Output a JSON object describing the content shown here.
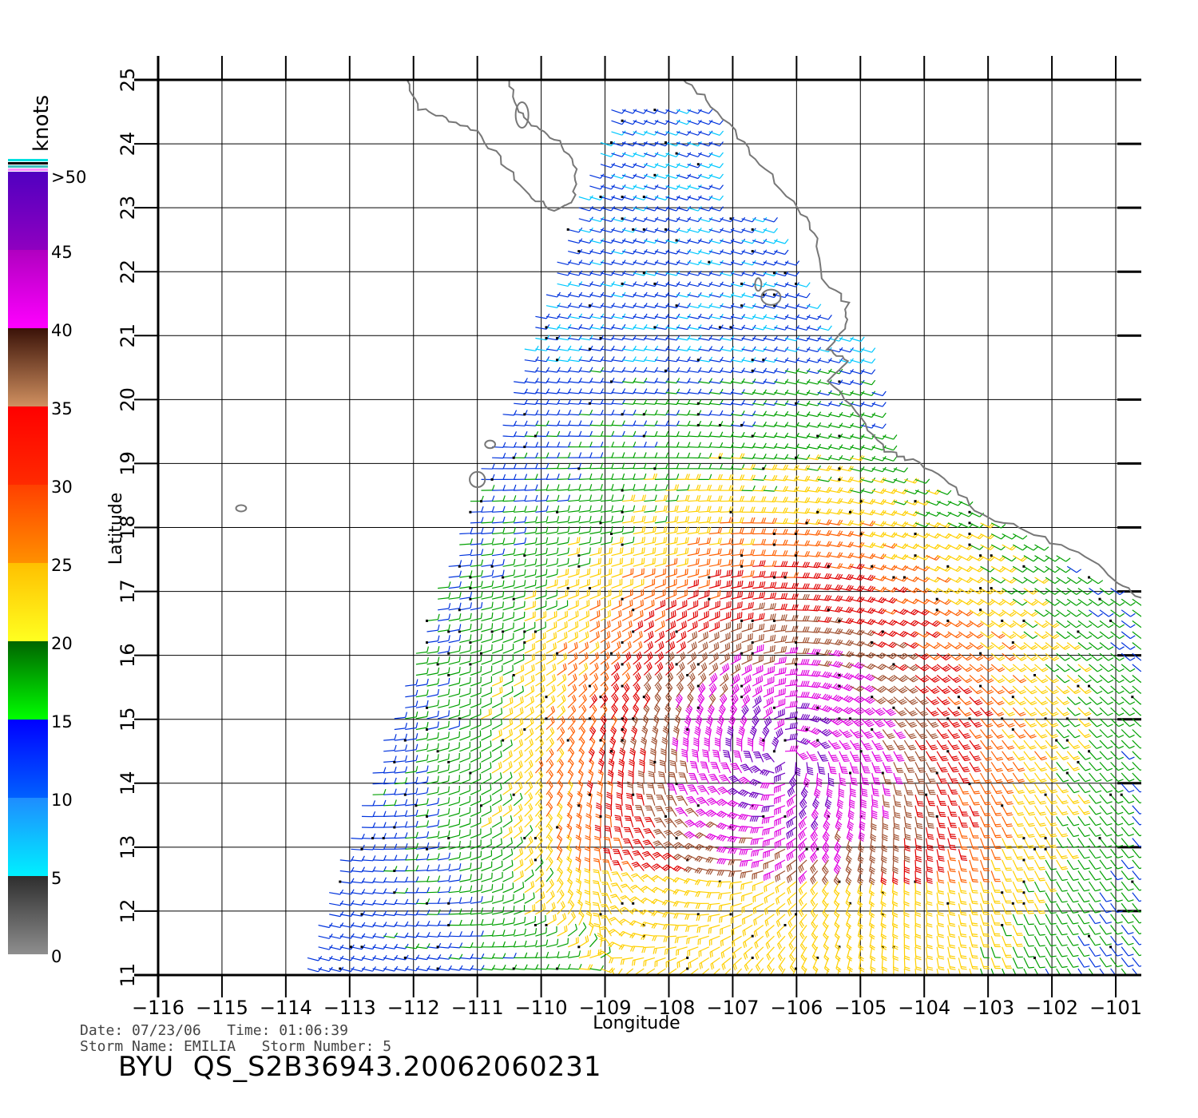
{
  "colorbar": {
    "unit": "knots",
    "labels": [
      "0",
      "5",
      "10",
      "15",
      "20",
      "25",
      "30",
      "35",
      "40",
      "45",
      ">50"
    ],
    "bands": [
      {
        "from": 0,
        "to": 5,
        "top": "#2e2e2e",
        "bottom": "#8e8e8e"
      },
      {
        "from": 5,
        "to": 10,
        "top": "#1e8cff",
        "bottom": "#00f0ff"
      },
      {
        "from": 10,
        "to": 15,
        "top": "#0000ff",
        "bottom": "#0060ff"
      },
      {
        "from": 15,
        "to": 20,
        "top": "#006400",
        "bottom": "#00ff00"
      },
      {
        "from": 20,
        "to": 25,
        "top": "#ffc000",
        "bottom": "#ffff20"
      },
      {
        "from": 25,
        "to": 30,
        "top": "#ff4000",
        "bottom": "#ff9000"
      },
      {
        "from": 30,
        "to": 35,
        "top": "#ff0000",
        "bottom": "#ff2a00"
      },
      {
        "from": 35,
        "to": 40,
        "top": "#3a1208",
        "bottom": "#d09060"
      },
      {
        "from": 40,
        "to": 45,
        "top": "#b000c0",
        "bottom": "#ff00ff"
      },
      {
        "from": 45,
        "to": 50,
        "top": "#5000c0",
        "bottom": "#9000c0"
      }
    ],
    "overflow_strips": [
      "#00e0e0",
      "#000000",
      "#40c0c0",
      "#ff90ff"
    ]
  },
  "map": {
    "lon_range": [
      -116,
      -100.6
    ],
    "lat_range": [
      11,
      25
    ],
    "lon_ticks": [
      "−116",
      "−115",
      "−114",
      "−113",
      "−112",
      "−111",
      "−110",
      "−109",
      "−108",
      "−107",
      "−106",
      "−105",
      "−104",
      "−103",
      "−102",
      "−101"
    ],
    "lat_ticks": [
      "11",
      "12",
      "13",
      "14",
      "15",
      "16",
      "17",
      "18",
      "19",
      "20",
      "21",
      "22",
      "23",
      "24",
      "25"
    ],
    "xlabel": "Longitude",
    "ylabel": "Latitude",
    "coast_color": "#777777",
    "storm_center": {
      "lon": -106.2,
      "lat": 14.4
    }
  },
  "meta": {
    "date_line": "Date: 07/23/06   Time: 01:06:39",
    "storm_line": "Storm Name: EMILIA   Storm Number: 5",
    "file_title": "BYU  QS_S2B36943.20062060231"
  }
}
